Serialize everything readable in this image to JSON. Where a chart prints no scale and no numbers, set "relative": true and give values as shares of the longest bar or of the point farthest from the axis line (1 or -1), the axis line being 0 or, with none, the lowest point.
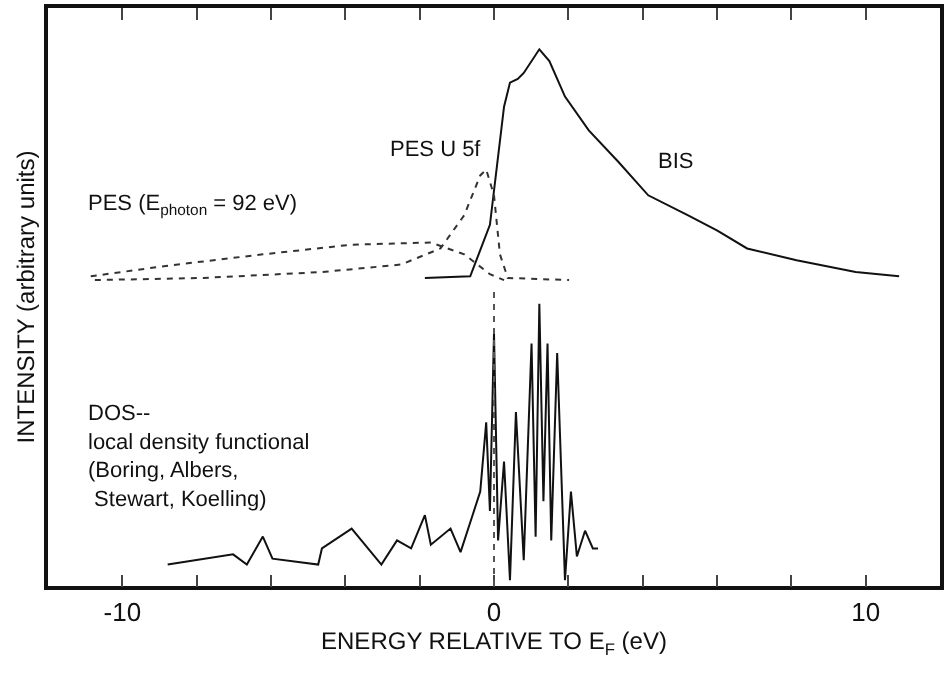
{
  "chart_data": {
    "type": "line",
    "relative": true,
    "xlabel": "ENERGY RELATIVE TO E$_{F}$ (eV)",
    "ylabel": "INTENSITY (arbitrary units)",
    "xlim": [
      -12,
      12
    ],
    "xticks": [
      -10,
      {
        "value": -8,
        "label": null
      },
      {
        "value": -6,
        "label": null
      },
      {
        "value": -4,
        "label": null
      },
      {
        "value": -2,
        "label": null
      },
      0,
      {
        "value": 2,
        "label": null
      },
      {
        "value": 4,
        "label": null
      },
      {
        "value": 6,
        "label": null
      },
      {
        "value": 8,
        "label": null
      },
      10
    ],
    "legend": false,
    "marker": "none",
    "ref_lines": [
      {
        "axis": "x",
        "value": 0,
        "color": "#555555",
        "line_style": "dotted"
      }
    ],
    "series": [
      {
        "name": "BIS",
        "color": "#111111",
        "line_style": "solid",
        "x": [
          -1.86,
          -0.64,
          -0.11,
          0.27,
          0.43,
          0.64,
          0.8,
          1.22,
          1.49,
          1.91,
          2.55,
          3.35,
          4.15,
          5.21,
          6.01,
          6.81,
          8.14,
          9.73,
          10.9
        ],
        "values": [
          0.574,
          0.577,
          0.673,
          0.893,
          0.938,
          0.945,
          0.956,
          1.0,
          0.978,
          0.912,
          0.849,
          0.79,
          0.728,
          0.691,
          0.662,
          0.629,
          0.607,
          0.585,
          0.577
        ]
      },
      {
        "name": "PES U 5f",
        "color": "#333333",
        "line_style": "dotted",
        "x": [
          -10.74,
          -7.82,
          -4.63,
          -2.5,
          -1.44,
          -0.8,
          -0.37,
          -0.21,
          0,
          0.16,
          0.37,
          2.02
        ],
        "values": [
          0.57,
          0.574,
          0.585,
          0.599,
          0.629,
          0.691,
          0.765,
          0.776,
          0.728,
          0.618,
          0.574,
          0.57
        ]
      },
      {
        "name": "PES (E$_{photon}$ = 92 eV)",
        "color": "#333333",
        "line_style": "dotted",
        "x": [
          -10.85,
          -8.88,
          -6.22,
          -3.83,
          -1.7,
          -0.8,
          -0.11,
          0.27
        ],
        "values": [
          0.577,
          0.596,
          0.618,
          0.636,
          0.64,
          0.618,
          0.581,
          0.57
        ]
      },
      {
        "name": "DOS--\nlocal density functional\n(Boring, Albers,\n Stewart, Koelling)",
        "color": "#111111",
        "line_style": "solid",
        "x": [
          -8.78,
          -7.02,
          -6.65,
          -6.22,
          -5.96,
          -4.73,
          -4.63,
          -3.83,
          -3.03,
          -2.61,
          -2.23,
          -1.86,
          -1.7,
          -1.17,
          -0.9,
          -0.59,
          -0.37,
          -0.21,
          -0.11,
          0,
          0.11,
          0.27,
          0.43,
          0.59,
          0.8,
          1.01,
          1.12,
          1.22,
          1.33,
          1.44,
          1.54,
          1.7,
          1.91,
          2.07,
          2.23,
          2.45,
          2.66,
          2.8
        ],
        "values": [
          0.04,
          0.059,
          0.04,
          0.092,
          0.051,
          0.04,
          0.07,
          0.107,
          0.04,
          0.085,
          0.07,
          0.132,
          0.077,
          0.107,
          0.063,
          0.129,
          0.176,
          0.305,
          0.14,
          0.471,
          0.085,
          0.232,
          0.011,
          0.324,
          0.048,
          0.452,
          0.092,
          0.526,
          0.158,
          0.452,
          0.085,
          0.434,
          0.011,
          0.176,
          0.055,
          0.103,
          0.07,
          0.07
        ]
      }
    ]
  }
}
